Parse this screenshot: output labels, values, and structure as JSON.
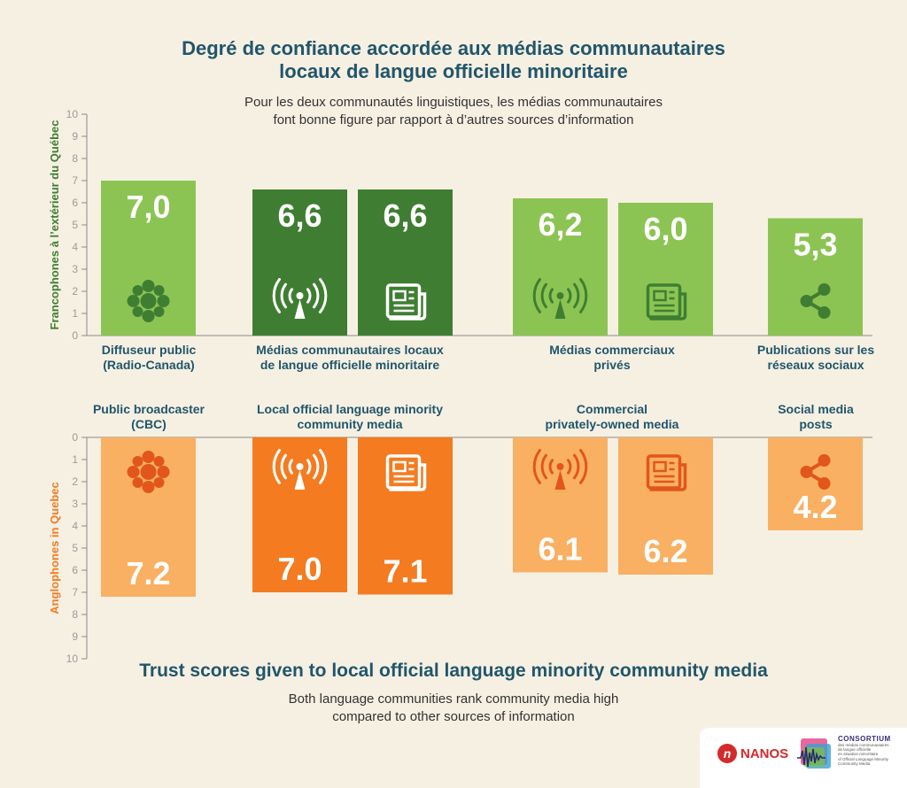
{
  "title_fr": [
    "Degré de confiance accordée aux médias communautaires",
    "locaux de langue officielle minoritaire"
  ],
  "subtitle_fr": [
    "Pour les deux communautés linguistiques, les médias communautaires",
    "font bonne figure par rapport à d’autres sources d’information"
  ],
  "title_en": "Trust scores given to local official language minority community media",
  "subtitle_en": [
    "Both language communities rank community media high",
    "compared to other sources of information"
  ],
  "logos": {
    "nanos": "NANOS",
    "consortium_title": "CONSORTIUM",
    "consortium_fr": [
      "des médias communautaires",
      "de langue officielle",
      "en situation minoritaire"
    ],
    "consortium_en": [
      "of Official Language Minority",
      "Community Media"
    ]
  },
  "colors": {
    "light_green": "#8cc453",
    "dark_green": "#3f7e32",
    "light_orange": "#f9b062",
    "dark_orange": "#f47b20",
    "title_teal": "#21566b",
    "bg": "#f6f0e3"
  },
  "chart_data": [
    {
      "type": "bar",
      "panel": "top",
      "ylabel": "Francophones à l’extérieur du Québec",
      "ylim": [
        0,
        10
      ],
      "yticks": [
        0,
        1,
        2,
        3,
        4,
        5,
        6,
        7,
        8,
        9,
        10
      ],
      "groups": [
        {
          "label": [
            "Diffuseur public",
            "(Radio-Canada)"
          ]
        },
        {
          "label": [
            "Médias communautaires locaux",
            "de langue officielle minoritaire"
          ]
        },
        {
          "label": [
            "Médias commerciaux",
            "privés"
          ]
        },
        {
          "label": [
            "Publications sur les",
            "réseaux sociaux"
          ]
        }
      ],
      "bars": [
        {
          "group": 0,
          "value": 7.0,
          "label": "7,0",
          "icon": "cbc-gem-icon",
          "shade": "light"
        },
        {
          "group": 1,
          "value": 6.6,
          "label": "6,6",
          "icon": "radio-antenna-icon",
          "shade": "dark"
        },
        {
          "group": 1,
          "value": 6.6,
          "label": "6,6",
          "icon": "newspaper-icon",
          "shade": "dark"
        },
        {
          "group": 2,
          "value": 6.2,
          "label": "6,2",
          "icon": "radio-antenna-icon",
          "shade": "light"
        },
        {
          "group": 2,
          "value": 6.0,
          "label": "6,0",
          "icon": "newspaper-icon",
          "shade": "light"
        },
        {
          "group": 3,
          "value": 5.3,
          "label": "5,3",
          "icon": "share-icon",
          "shade": "light"
        }
      ]
    },
    {
      "type": "bar",
      "panel": "bottom",
      "ylabel": "Anglophones in Quebec",
      "ylim": [
        0,
        10
      ],
      "inverted": true,
      "yticks": [
        0,
        1,
        2,
        3,
        4,
        5,
        6,
        7,
        8,
        9,
        10
      ],
      "groups": [
        {
          "label": [
            "Public broadcaster",
            "(CBC)"
          ]
        },
        {
          "label": [
            "Local official language minority",
            "community media"
          ]
        },
        {
          "label": [
            "Commercial",
            "privately-owned media"
          ]
        },
        {
          "label": [
            "Social media",
            "posts"
          ]
        }
      ],
      "bars": [
        {
          "group": 0,
          "value": 7.2,
          "label": "7.2",
          "icon": "cbc-gem-icon",
          "shade": "light"
        },
        {
          "group": 1,
          "value": 7.0,
          "label": "7.0",
          "icon": "radio-antenna-icon",
          "shade": "dark"
        },
        {
          "group": 1,
          "value": 7.1,
          "label": "7.1",
          "icon": "newspaper-icon",
          "shade": "dark"
        },
        {
          "group": 2,
          "value": 6.1,
          "label": "6.1",
          "icon": "radio-antenna-icon",
          "shade": "light"
        },
        {
          "group": 2,
          "value": 6.2,
          "label": "6.2",
          "icon": "newspaper-icon",
          "shade": "light"
        },
        {
          "group": 3,
          "value": 4.2,
          "label": "4.2",
          "icon": "share-icon",
          "shade": "light"
        }
      ]
    }
  ]
}
